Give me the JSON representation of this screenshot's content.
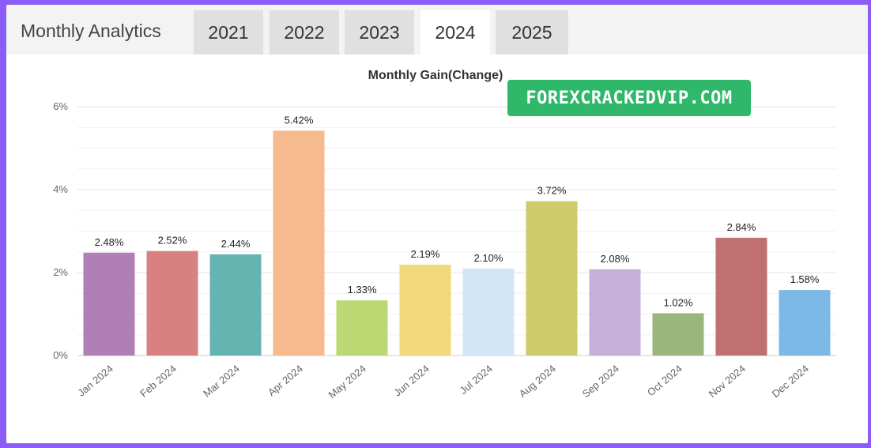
{
  "header": {
    "title": "Monthly Analytics",
    "tabs": [
      {
        "label": "2021",
        "active": false
      },
      {
        "label": "2022",
        "active": false
      },
      {
        "label": "2023",
        "active": false
      },
      {
        "label": "2024",
        "active": true
      },
      {
        "label": "2025",
        "active": false
      }
    ]
  },
  "watermark": "FOREXCRACKEDVIP.COM",
  "colors": {
    "background_frame": "#8b5cf6",
    "badge": "#2fb86a"
  },
  "chart_data": {
    "type": "bar",
    "title": "Monthly Gain(Change)",
    "xlabel": "",
    "ylabel": "",
    "ylim": [
      0,
      6
    ],
    "yticks": [
      "0%",
      "2%",
      "4%",
      "6%"
    ],
    "grid": true,
    "categories": [
      "Jan 2024",
      "Feb 2024",
      "Mar 2024",
      "Apr 2024",
      "May 2024",
      "Jun 2024",
      "Jul 2024",
      "Aug 2024",
      "Sep 2024",
      "Oct 2024",
      "Nov 2024",
      "Dec 2024"
    ],
    "values": [
      2.48,
      2.52,
      2.44,
      5.42,
      1.33,
      2.19,
      2.1,
      3.72,
      2.08,
      1.02,
      2.84,
      1.58
    ],
    "labels": [
      "2.48%",
      "2.52%",
      "2.44%",
      "5.42%",
      "1.33%",
      "2.19%",
      "2.10%",
      "3.72%",
      "2.08%",
      "1.02%",
      "2.84%",
      "1.58%"
    ],
    "bar_colors": [
      "#b07fb6",
      "#d98080",
      "#64b4b2",
      "#f7b98e",
      "#bcd873",
      "#f1d87a",
      "#d3e6f8",
      "#cdcb6b",
      "#c5b1d7",
      "#9bb67d",
      "#c07070",
      "#7db9e6"
    ]
  }
}
